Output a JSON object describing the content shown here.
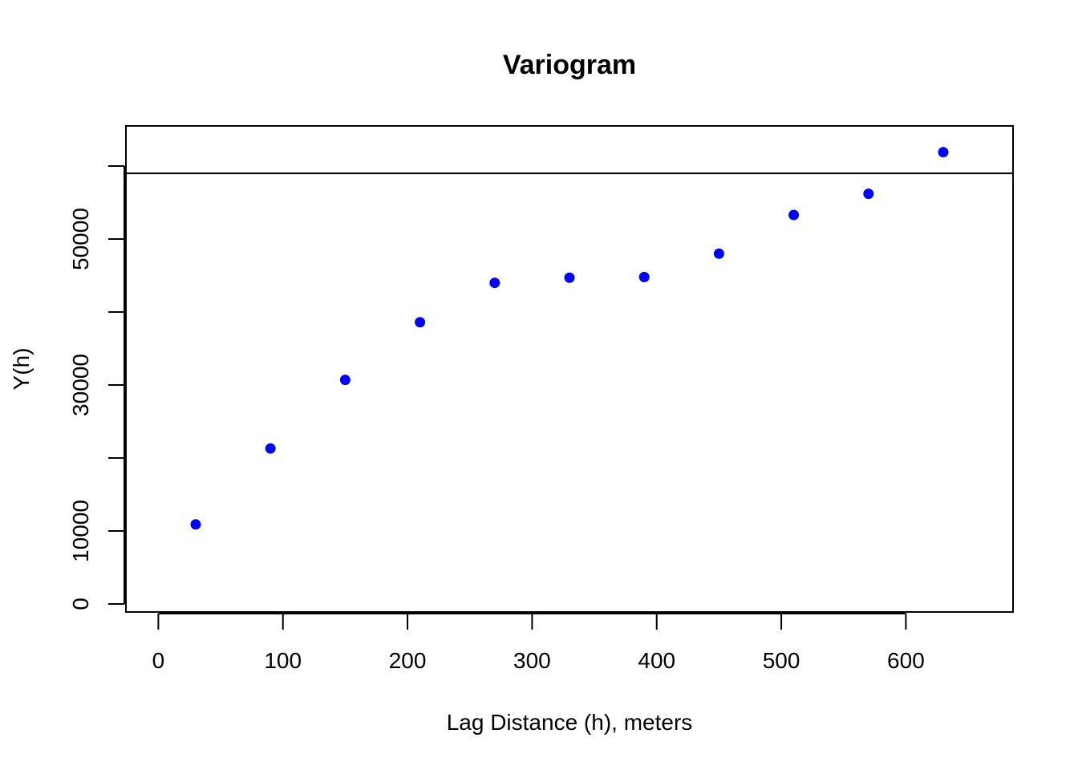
{
  "chart_data": {
    "type": "scatter",
    "title": "Variogram",
    "xlabel": "Lag Distance (h), meters",
    "ylabel": "Y(h)",
    "xlim": [
      -26,
      686
    ],
    "ylim": [
      -1100,
      65500
    ],
    "x_ticks": [
      0,
      100,
      200,
      300,
      400,
      500,
      600
    ],
    "y_ticks": [
      0,
      10000,
      20000,
      30000,
      40000,
      50000,
      60000
    ],
    "y_tick_labels": [
      "0",
      "10000",
      "",
      "30000",
      "",
      "50000",
      ""
    ],
    "grid": false,
    "legend": "none",
    "point_color": "#0000ff",
    "reference_line": {
      "orientation": "horizontal",
      "y": 59000
    },
    "series": [
      {
        "x": [
          30,
          90,
          150,
          210,
          270,
          330,
          390,
          450,
          510,
          570,
          630
        ],
        "y": [
          10900,
          21300,
          30700,
          38600,
          44000,
          44700,
          44800,
          48000,
          53300,
          56200,
          61900
        ]
      }
    ]
  }
}
